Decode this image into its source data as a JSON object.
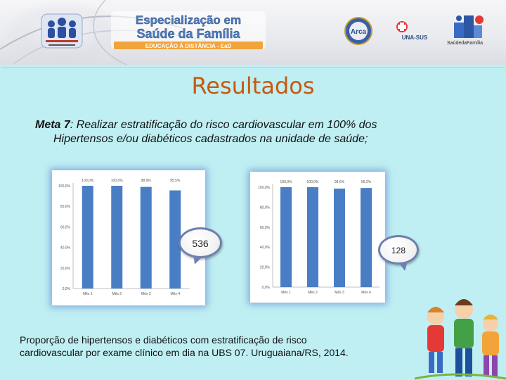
{
  "header": {
    "banner_line1": "Especialização em",
    "banner_line2": "Saúde da Família",
    "banner_line3": "EDUCAÇÃO À DISTÂNCIA - EaD",
    "seal_text": "Arca",
    "unasus_text": "UNA-SUS",
    "saude_caption": "SaúdedaFamília"
  },
  "slide": {
    "title": "Resultados",
    "meta_label": "Meta 7",
    "meta_line1": ": Realizar estratificação do risco cardiovascular em 100% dos",
    "meta_line2": "Hipertensos e/ou diabéticos cadastrados na unidade de saúde;",
    "caption_line1": "Proporção de hipertensos e diabéticos com estratificação de risco",
    "caption_line2": "cardiovascular por exame clínico em dia na UBS 07. Uruguaiana/RS, 2014."
  },
  "callouts": {
    "left": "536",
    "right": "128"
  },
  "colors": {
    "bar": "#4a7ec4",
    "title": "#c55a11",
    "background": "#bfeff2"
  },
  "chart_data": [
    {
      "type": "bar",
      "categories": [
        "Mês 1",
        "Mês 2",
        "Mês 3",
        "Mês 4"
      ],
      "values": [
        100.0,
        100.0,
        98.9,
        95.5
      ],
      "data_labels": [
        "100,0%",
        "100,0%",
        "98,9%",
        "95,5%"
      ],
      "y_ticks": [
        0,
        20,
        40,
        60,
        80,
        100
      ],
      "y_tick_labels": [
        "0,0%",
        "20,0%",
        "40,0%",
        "60,0%",
        "80,0%",
        "100,0%"
      ],
      "ylim": [
        0,
        100
      ],
      "grid": false
    },
    {
      "type": "bar",
      "categories": [
        "Mês 1",
        "Mês 2",
        "Mês 3",
        "Mês 4"
      ],
      "values": [
        100.0,
        100.0,
        98.6,
        99.2
      ],
      "data_labels": [
        "100,0%",
        "100,0%",
        "98,6%",
        "99,2%"
      ],
      "y_ticks": [
        0,
        20,
        40,
        60,
        80,
        100
      ],
      "y_tick_labels": [
        "0,0%",
        "20,0%",
        "40,0%",
        "60,0%",
        "80,0%",
        "100,0%"
      ],
      "ylim": [
        0,
        100
      ],
      "grid": false
    }
  ]
}
